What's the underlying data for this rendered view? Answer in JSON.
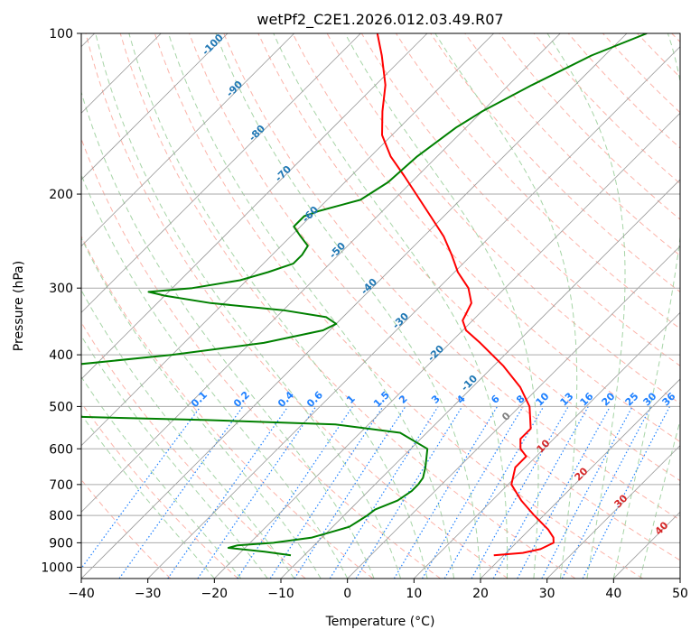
{
  "chart_data": {
    "type": "skew-t",
    "title": "wetPf2_C2E1.2026.012.03.49.R07",
    "xlabel": "Temperature (°C)",
    "ylabel": "Pressure (hPa)",
    "xlim": [
      -40,
      50
    ],
    "ylim": [
      1050,
      100
    ],
    "y_scale": "log",
    "grid": true,
    "x_ticks": [
      "−40",
      "−30",
      "−20",
      "−10",
      "0",
      "10",
      "20",
      "30",
      "40",
      "50"
    ],
    "y_ticks": [
      "100",
      "200",
      "300",
      "400",
      "500",
      "600",
      "700",
      "800",
      "900",
      "1000"
    ],
    "series": [
      {
        "color": "#ff0000",
        "pressure": [
          950,
          940,
          925,
          900,
          880,
          850,
          800,
          750,
          700,
          650,
          620,
          600,
          575,
          550,
          500,
          460,
          420,
          380,
          360,
          345,
          335,
          320,
          300,
          280,
          260,
          240,
          220,
          200,
          185,
          170,
          155,
          140,
          125,
          110,
          100
        ],
        "temperature": [
          18.5,
          22.5,
          24.6,
          25.6,
          24.8,
          22.8,
          18.6,
          14.4,
          10.5,
          8.5,
          8.5,
          6.5,
          5.0,
          5.0,
          1.5,
          -2.8,
          -8.5,
          -15.5,
          -19.5,
          -21.5,
          -22.0,
          -22.8,
          -25.5,
          -29.5,
          -33.0,
          -37.0,
          -42.0,
          -47.5,
          -52.0,
          -57.0,
          -61.5,
          -65.0,
          -68.5,
          -73.5,
          -77.5
        ]
      },
      {
        "color": "#008000",
        "pressure": [
          950,
          935,
          920,
          910,
          900,
          880,
          860,
          840,
          820,
          800,
          780,
          750,
          720,
          700,
          680,
          650,
          600,
          560,
          540,
          530,
          520,
          515,
          505,
          495,
          490,
          485,
          480,
          475,
          470,
          440,
          432,
          420,
          400,
          380,
          360,
          350,
          340,
          330,
          320,
          310,
          305,
          300,
          290,
          280,
          270,
          260,
          250,
          240,
          230,
          220,
          215,
          205,
          190,
          170,
          150,
          140,
          125,
          110,
          100
        ],
        "temperature": [
          -12.0,
          -16.5,
          -22.5,
          -21.5,
          -16.5,
          -11.5,
          -9.5,
          -7.5,
          -7.0,
          -6.5,
          -6.2,
          -4.2,
          -3.5,
          -3.5,
          -3.8,
          -5.0,
          -7.5,
          -14.0,
          -25.0,
          -45.0,
          -72.0,
          -80.0,
          -82.0,
          -84.0,
          -85.0,
          -84.5,
          -83.0,
          -82.0,
          -81.0,
          -80.0,
          -88.0,
          -75.0,
          -60.0,
          -48.0,
          -41.0,
          -40.0,
          -42.5,
          -50.0,
          -62.0,
          -70.0,
          -73.0,
          -67.0,
          -61.0,
          -58.0,
          -55.5,
          -55.5,
          -56.0,
          -58.5,
          -61.0,
          -61.0,
          -59.5,
          -55.0,
          -53.5,
          -53.0,
          -51.5,
          -50.0,
          -46.5,
          -42.0,
          -37.0
        ]
      }
    ],
    "reference_lines": {
      "dry_adiabat_labels": [
        "-100",
        "-90",
        "-80",
        "-70",
        "-60",
        "-50",
        "-40",
        "-30",
        "-20",
        "-10"
      ],
      "mixing_ratio_labels": [
        "0.1",
        "0.2",
        "0.4",
        "0.6",
        "1",
        "1.5",
        "2",
        "3",
        "4",
        "6",
        "8",
        "10",
        "13",
        "16",
        "20",
        "25",
        "30",
        "36"
      ],
      "moist_adiabat_labels": [
        "0",
        "10",
        "20",
        "30",
        "40"
      ]
    },
    "colors": {
      "temperature": "#ff0000",
      "dewpoint": "#008000",
      "dry_adiabat": "#fa8070",
      "moist_adiabat": "#90c990",
      "mixing_ratio": "#1e80ff",
      "isotherm": "#999999",
      "dry_label": "#1f77b4",
      "moist_label": "#d62728",
      "zero_label": "#7f7f7f"
    }
  }
}
